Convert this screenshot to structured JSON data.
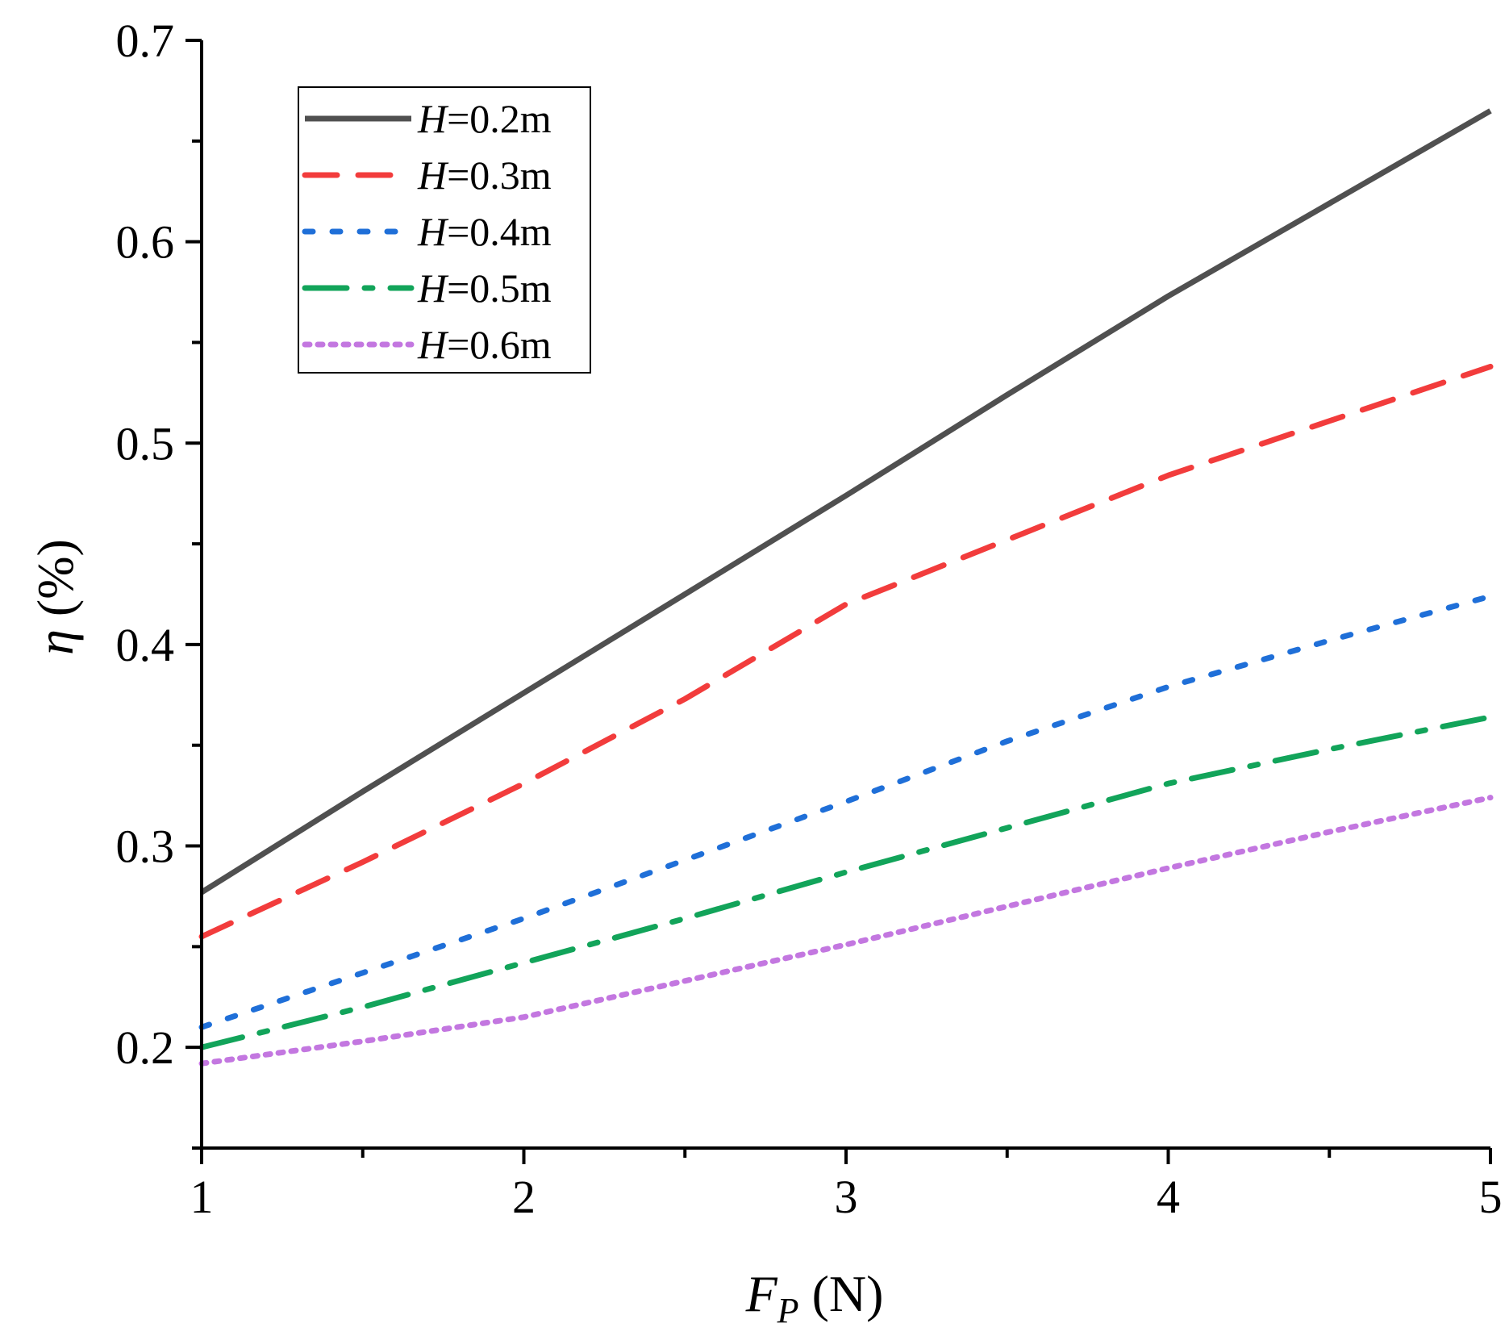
{
  "chart_data": {
    "type": "line",
    "title": "",
    "xlabel": {
      "symbol": "F",
      "subscript": "P",
      "unit": " (N)"
    },
    "ylabel": {
      "symbol": "η",
      "unit": " (%)"
    },
    "xlim": [
      1,
      5
    ],
    "ylim": [
      0.15,
      0.7
    ],
    "x_ticks": [
      1,
      2,
      3,
      4,
      5
    ],
    "x_tick_labels": [
      "1",
      "2",
      "3",
      "4",
      "5"
    ],
    "y_ticks": [
      0.2,
      0.3,
      0.4,
      0.5,
      0.6,
      0.7
    ],
    "y_tick_labels": [
      "0.2",
      "0.3",
      "0.4",
      "0.5",
      "0.6",
      "0.7"
    ],
    "grid": false,
    "legend_position": "top-left",
    "x": [
      1,
      1.5,
      2,
      2.5,
      3,
      3.5,
      4,
      4.5,
      5
    ],
    "series": [
      {
        "name": "H=0.2m",
        "var": "H",
        "value": "=0.2m",
        "color": "#505050",
        "style": "solid",
        "values": [
          0.277,
          0.327,
          0.376,
          0.425,
          0.474,
          0.524,
          0.573,
          0.619,
          0.665
        ]
      },
      {
        "name": "H=0.3m",
        "var": "H",
        "value": "=0.3m",
        "color": "#f23c3c",
        "style": "dash",
        "values": [
          0.255,
          0.292,
          0.331,
          0.373,
          0.42,
          0.452,
          0.484,
          0.511,
          0.538
        ]
      },
      {
        "name": "H=0.4m",
        "var": "H",
        "value": "=0.4m",
        "color": "#1f6fd8",
        "style": "dot",
        "values": [
          0.21,
          0.237,
          0.264,
          0.293,
          0.322,
          0.352,
          0.379,
          0.402,
          0.424
        ]
      },
      {
        "name": "H=0.5m",
        "var": "H",
        "value": "=0.5m",
        "color": "#12a45a",
        "style": "dashdot",
        "values": [
          0.2,
          0.22,
          0.242,
          0.264,
          0.287,
          0.309,
          0.331,
          0.348,
          0.364
        ]
      },
      {
        "name": "H=0.6m",
        "var": "H",
        "value": "=0.6m",
        "color": "#c377e0",
        "style": "shortdot",
        "values": [
          0.192,
          0.203,
          0.215,
          0.233,
          0.251,
          0.27,
          0.289,
          0.307,
          0.324
        ]
      }
    ]
  }
}
